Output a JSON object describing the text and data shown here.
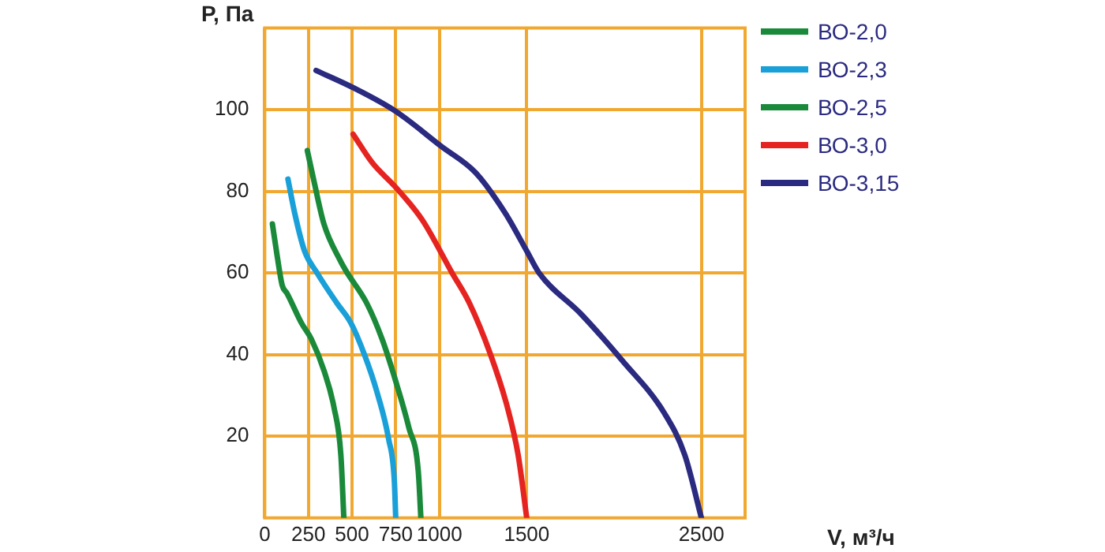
{
  "chart_data": {
    "type": "line",
    "xlabel": "V, м³/ч",
    "ylabel": "P, Па",
    "xlim": [
      0,
      2750
    ],
    "xticks": [
      0,
      250,
      500,
      750,
      1000,
      1500,
      2500
    ],
    "ylim": [
      0,
      120
    ],
    "yticks": [
      20,
      40,
      60,
      80,
      100
    ],
    "grid": true,
    "legend": "top right",
    "marker": "none",
    "line_style": "solid",
    "series": [
      {
        "name": "ВО-2,0",
        "color": "#1a8a3a",
        "x": [
          44,
          72,
          100,
          128,
          211,
          267,
          340,
          397,
          436,
          453
        ],
        "values": [
          72,
          64,
          57,
          55,
          47.7,
          43.8,
          36,
          27,
          15.4,
          0
        ]
      },
      {
        "name": "ВО-2,3",
        "color": "#1aa0d8",
        "x": [
          133,
          172,
          228,
          300,
          412,
          494,
          571,
          643,
          710,
          742,
          750
        ],
        "values": [
          83,
          74.6,
          65.4,
          60,
          52.7,
          47.7,
          40,
          30.8,
          19.2,
          9.2,
          0
        ]
      },
      {
        "name": "ВО-2,5",
        "color": "#1a8a3a",
        "x": [
          244,
          283,
          339,
          433,
          467,
          583,
          672,
          750,
          826,
          879,
          894
        ],
        "values": [
          90,
          82.3,
          72,
          63,
          60.4,
          52.7,
          43.8,
          33.5,
          22,
          11.5,
          0
        ]
      },
      {
        "name": "ВО-3,0",
        "color": "#e52421",
        "x": [
          506,
          616,
          750,
          902,
          1073,
          1171,
          1293,
          1390,
          1451,
          1500
        ],
        "values": [
          94,
          87,
          81,
          73,
          60,
          52.7,
          40,
          27,
          15.4,
          0
        ]
      },
      {
        "name": "ВО-3,15",
        "color": "#2a2a80",
        "x": [
          294,
          506,
          750,
          1012,
          1207,
          1378,
          1500,
          1571,
          1810,
          2048,
          2286,
          2405,
          2500
        ],
        "values": [
          109.6,
          105.4,
          99.6,
          91,
          84.6,
          74.6,
          65.4,
          60,
          50,
          38.5,
          25.8,
          15.4,
          0
        ]
      }
    ]
  }
}
